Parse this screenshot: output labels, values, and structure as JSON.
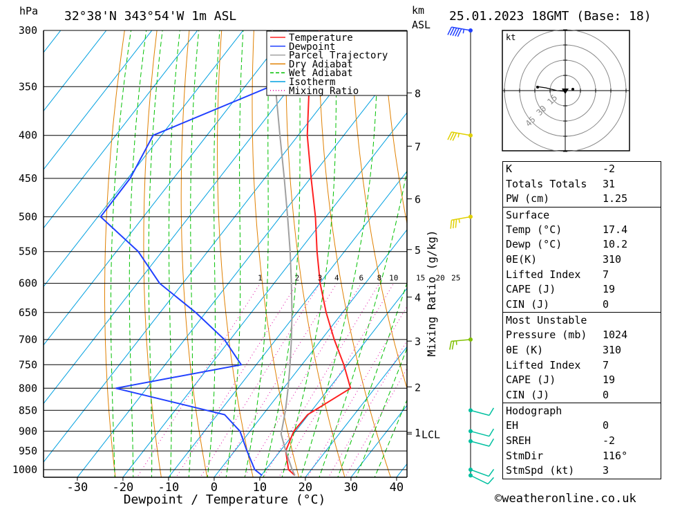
{
  "header": {
    "left_unit": "hPa",
    "location": "32°38'N  343°54'W  1m  ASL",
    "km_unit": "km",
    "asl_unit": "ASL",
    "datetime": "25.01.2023  18GMT  (Base: 18)"
  },
  "legend": [
    {
      "label": "Temperature",
      "color": "#ff2020",
      "style": "solid"
    },
    {
      "label": "Dewpoint",
      "color": "#2040ff",
      "style": "solid"
    },
    {
      "label": "Parcel Trajectory",
      "color": "#a0a0a0",
      "style": "solid"
    },
    {
      "label": "Dry Adiabat",
      "color": "#e08000",
      "style": "solid"
    },
    {
      "label": "Wet Adiabat",
      "color": "#00c000",
      "style": "dashed"
    },
    {
      "label": "Isotherm",
      "color": "#00a0e0",
      "style": "solid"
    },
    {
      "label": "Mixing Ratio",
      "color": "#e000a0",
      "style": "dotted"
    }
  ],
  "chart_data": {
    "type": "line",
    "xlabel": "Dewpoint / Temperature (°C)",
    "ylabel": "hPa",
    "xlim": [
      -40,
      40
    ],
    "x_ticks": [
      -30,
      -20,
      -10,
      0,
      10,
      20,
      30,
      40
    ],
    "pressure_levels": [
      300,
      350,
      400,
      450,
      500,
      550,
      600,
      650,
      700,
      750,
      800,
      850,
      900,
      950,
      1000
    ],
    "km_ticks": [
      {
        "label": "8",
        "p": 356
      },
      {
        "label": "7",
        "p": 412
      },
      {
        "label": "6",
        "p": 476
      },
      {
        "label": "5",
        "p": 547
      },
      {
        "label": "4",
        "p": 623
      },
      {
        "label": "3",
        "p": 703
      },
      {
        "label": "2",
        "p": 797
      },
      {
        "label": "1",
        "p": 903
      }
    ],
    "lcl_label": "LCL",
    "lcl_p": 907,
    "mixing_ratio_axis_label": "Mixing Ratio (g/kg)",
    "mixing_ratio_labels": [
      "1",
      "2",
      "3",
      "4",
      "6",
      "8",
      "10",
      "15",
      "20",
      "25"
    ],
    "series": [
      {
        "name": "Temperature",
        "color": "#ff2020",
        "points": [
          [
            1016,
            17.4
          ],
          [
            1000,
            15.0
          ],
          [
            950,
            11.2
          ],
          [
            900,
            9.6
          ],
          [
            860,
            9.8
          ],
          [
            800,
            14.7
          ],
          [
            750,
            9.2
          ],
          [
            700,
            2.8
          ],
          [
            650,
            -3.6
          ],
          [
            600,
            -9.9
          ],
          [
            550,
            -16.0
          ],
          [
            500,
            -22.3
          ],
          [
            450,
            -29.8
          ],
          [
            400,
            -38.0
          ],
          [
            350,
            -45.9
          ],
          [
            300,
            -53.3
          ]
        ]
      },
      {
        "name": "Dewpoint",
        "color": "#2040ff",
        "points": [
          [
            1016,
            10.2
          ],
          [
            1000,
            7.6
          ],
          [
            950,
            2.7
          ],
          [
            900,
            -2.2
          ],
          [
            860,
            -8.4
          ],
          [
            800,
            -36.8
          ],
          [
            750,
            -13.3
          ],
          [
            700,
            -21.3
          ],
          [
            650,
            -32.2
          ],
          [
            600,
            -45.1
          ],
          [
            550,
            -55.2
          ],
          [
            500,
            -69.4
          ],
          [
            450,
            -69.5
          ],
          [
            400,
            -71.8
          ],
          [
            350,
            -54.5
          ],
          [
            300,
            -60.2
          ]
        ]
      },
      {
        "name": "Parcel Trajectory",
        "color": "#a0a0a0",
        "points": [
          [
            1016,
            17.4
          ],
          [
            1000,
            15.8
          ],
          [
            950,
            11.2
          ],
          [
            907,
            7.3
          ],
          [
            850,
            4.2
          ],
          [
            800,
            1.0
          ],
          [
            750,
            -2.6
          ],
          [
            700,
            -6.6
          ],
          [
            650,
            -11.1
          ],
          [
            600,
            -16.2
          ],
          [
            550,
            -21.9
          ],
          [
            500,
            -28.4
          ],
          [
            450,
            -35.7
          ],
          [
            400,
            -44.0
          ],
          [
            350,
            -53.3
          ],
          [
            300,
            -63.6
          ]
        ]
      }
    ],
    "wind_barbs": [
      {
        "p": 300,
        "dir": 280,
        "spd_kt": 45
      },
      {
        "p": 400,
        "dir": 280,
        "spd_kt": 25
      },
      {
        "p": 500,
        "dir": 260,
        "spd_kt": 25
      },
      {
        "p": 700,
        "dir": 265,
        "spd_kt": 15
      },
      {
        "p": 850,
        "dir": 105,
        "spd_kt": 10
      },
      {
        "p": 900,
        "dir": 105,
        "spd_kt": 10
      },
      {
        "p": 925,
        "dir": 105,
        "spd_kt": 10
      },
      {
        "p": 1000,
        "dir": 110,
        "spd_kt": 10
      },
      {
        "p": 1016,
        "dir": 116,
        "spd_kt": 10
      }
    ]
  },
  "hodograph": {
    "unit": "kt",
    "ring_labels": [
      "15",
      "30",
      "45"
    ]
  },
  "indices": {
    "k_label": "K",
    "k_value": "-2",
    "tt_label": "Totals Totals",
    "tt_value": "31",
    "pw_label": "PW (cm)",
    "pw_value": "1.25",
    "surface_title": "Surface",
    "surface": [
      {
        "label": "Temp (°C)",
        "value": "17.4"
      },
      {
        "label": "Dewp (°C)",
        "value": "10.2"
      },
      {
        "label": "θE(K)",
        "value": "310"
      },
      {
        "label": "Lifted Index",
        "value": "7"
      },
      {
        "label": "CAPE (J)",
        "value": "19"
      },
      {
        "label": "CIN (J)",
        "value": "0"
      }
    ],
    "mu_title": "Most Unstable",
    "most_unstable": [
      {
        "label": "Pressure (mb)",
        "value": "1024"
      },
      {
        "label": "θE (K)",
        "value": "310"
      },
      {
        "label": "Lifted Index",
        "value": "7"
      },
      {
        "label": "CAPE (J)",
        "value": "19"
      },
      {
        "label": "CIN (J)",
        "value": "0"
      }
    ],
    "hodo_title": "Hodograph",
    "hodo": [
      {
        "label": "EH",
        "value": "0"
      },
      {
        "label": "SREH",
        "value": "-2"
      },
      {
        "label": "StmDir",
        "value": "116°"
      },
      {
        "label": "StmSpd (kt)",
        "value": "3"
      }
    ]
  },
  "footer": "©weatheronline.co.uk"
}
